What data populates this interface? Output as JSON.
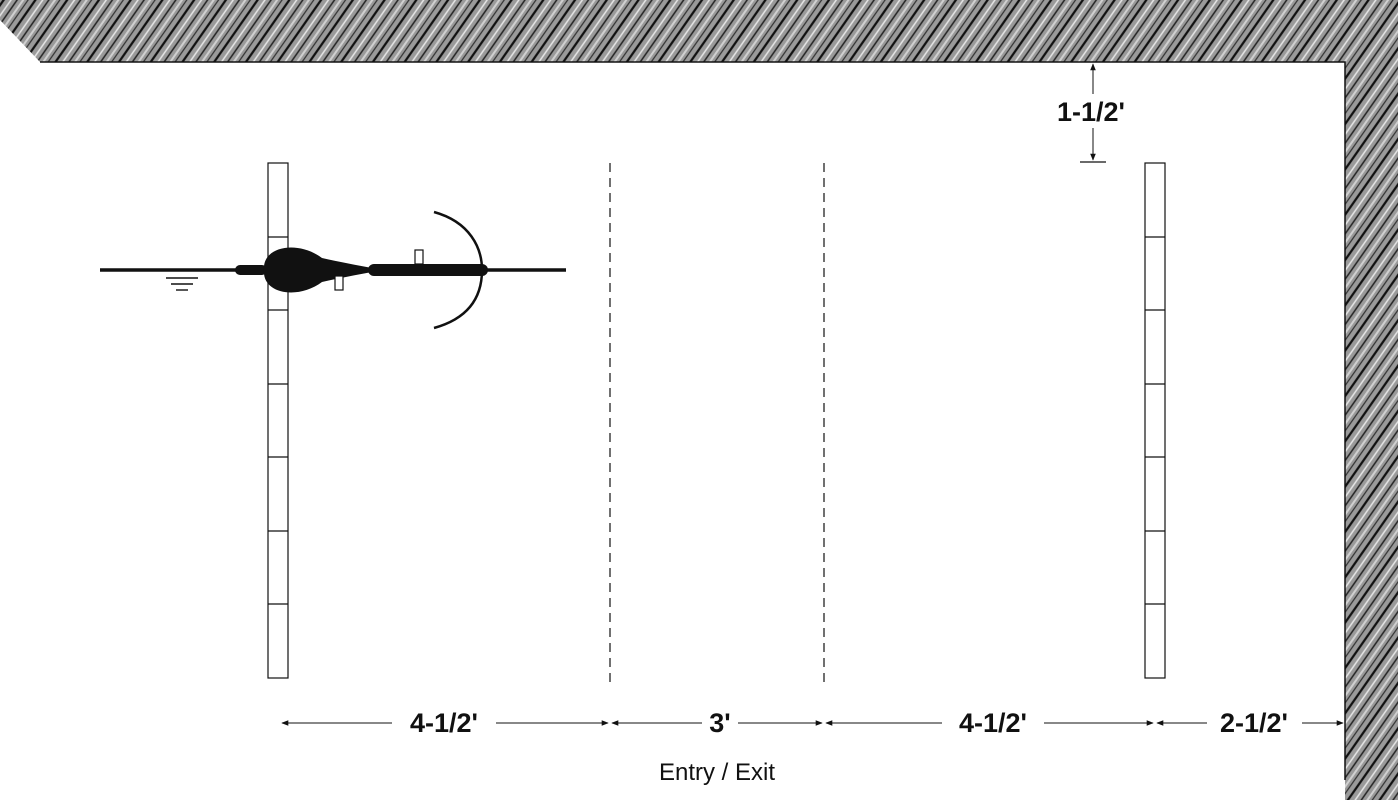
{
  "dimensions": {
    "clearance": "1-1/2'",
    "span_1": "4-1/2'",
    "span_2": "3'",
    "span_3": "4-1/2'",
    "span_4": "2-1/2'"
  },
  "entry_label": "Entry / Exit",
  "colors": {
    "ink": "#111111",
    "wall_texture": "#8a8a8a",
    "background": "#ffffff"
  }
}
